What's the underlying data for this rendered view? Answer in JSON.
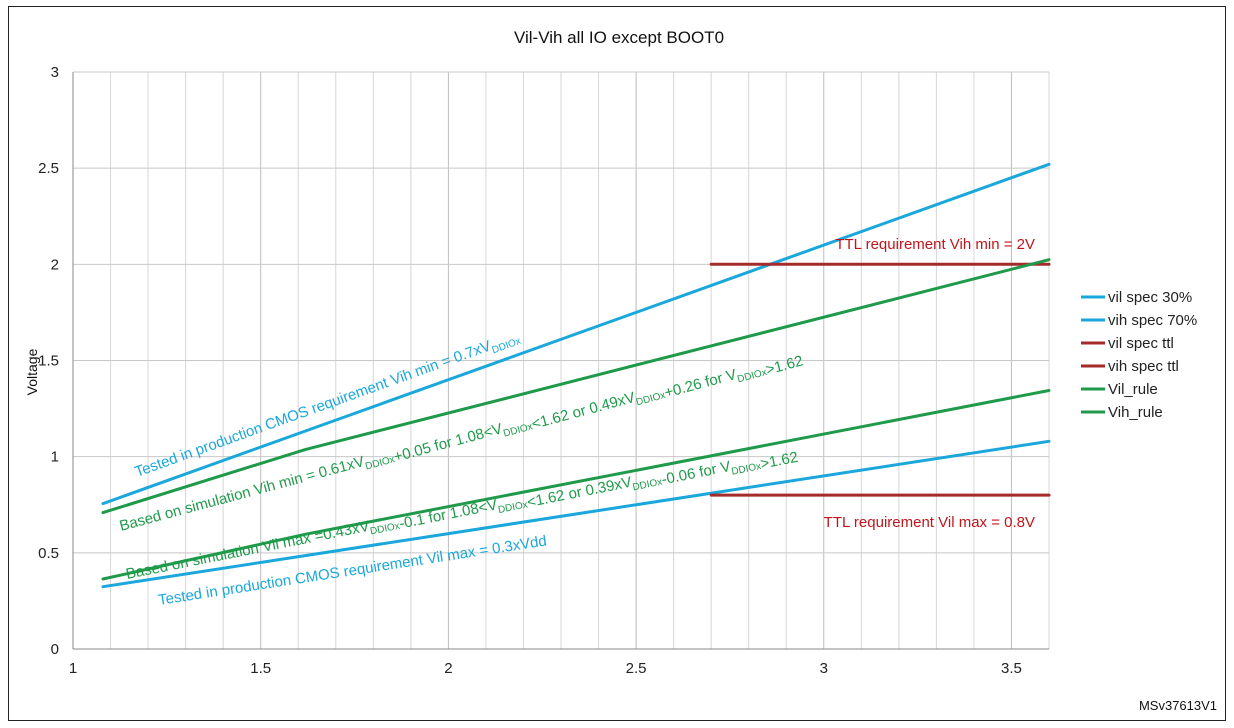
{
  "chart_data": {
    "type": "line",
    "title": "Vil-Vih all IO except BOOT0",
    "xlabel": "",
    "ylabel": "Voltage",
    "xlim": [
      1,
      3.6
    ],
    "ylim": [
      0,
      3
    ],
    "xticks": [
      1,
      1.5,
      2,
      2.5,
      3,
      3.5
    ],
    "xtick_labels": [
      "1",
      "1.5",
      "2",
      "2.5",
      "3",
      "3.5"
    ],
    "yticks": [
      0,
      0.5,
      1,
      1.5,
      2,
      2.5,
      3
    ],
    "ytick_labels": [
      "0",
      "0.5",
      "1",
      "1.5",
      "2",
      "2.5",
      "3"
    ],
    "grid": true,
    "legend_position": "right",
    "series": [
      {
        "name": "vil spec 30%",
        "color": "#1aa7dc",
        "x": [
          1.08,
          3.6
        ],
        "y": [
          0.324,
          1.08
        ]
      },
      {
        "name": "vih spec 70%",
        "color": "#1aa7dc",
        "x": [
          1.08,
          3.6
        ],
        "y": [
          0.756,
          2.52
        ]
      },
      {
        "name": "vil spec ttl",
        "color": "#a52a2a",
        "x": [
          2.7,
          3.6
        ],
        "y": [
          0.8,
          0.8
        ]
      },
      {
        "name": "vih spec ttl",
        "color": "#a52a2a",
        "x": [
          2.7,
          3.6
        ],
        "y": [
          2.0,
          2.0
        ]
      },
      {
        "name": "Vil_rule",
        "color": "#1f9a4a",
        "x": [
          1.08,
          1.62,
          3.6
        ],
        "y": [
          0.364,
          0.597,
          1.344
        ]
      },
      {
        "name": "Vih_rule",
        "color": "#1f9a4a",
        "x": [
          1.08,
          1.62,
          3.6
        ],
        "y": [
          0.709,
          1.038,
          2.024
        ]
      }
    ],
    "annotations": [
      {
        "text": "TTL requirement Vih min = 2V",
        "color": "#c0161b"
      },
      {
        "text": "TTL requirement Vil max = 0.8V",
        "color": "#c0161b"
      },
      {
        "text": "Tested in production CMOS requirement Vih min = 0.7xV",
        "sub": "DDIOx",
        "color": "#1aa7dc"
      },
      {
        "text": "Tested in production CMOS requirement Vil max = 0.3xVdd",
        "color": "#1aa7dc"
      },
      {
        "text": "Based on simulation Vih min = 0.61xV_DDIOx+0.05 for 1.08<V_DDIOx<1.62 or 0.49xV_DDIOx+0.26 for V_DDIOx>1.62",
        "color": "#1f9a4a"
      },
      {
        "text": "Based on simulation Vil max =0.43xV_DDIOx-0.1 for 1.08<V_DDIOx<1.62 or  0.39xV_DDIOx-0.06 for V_DDIOx>1.62",
        "color": "#1f9a4a"
      }
    ]
  },
  "figure_id": "MSv37613V1"
}
